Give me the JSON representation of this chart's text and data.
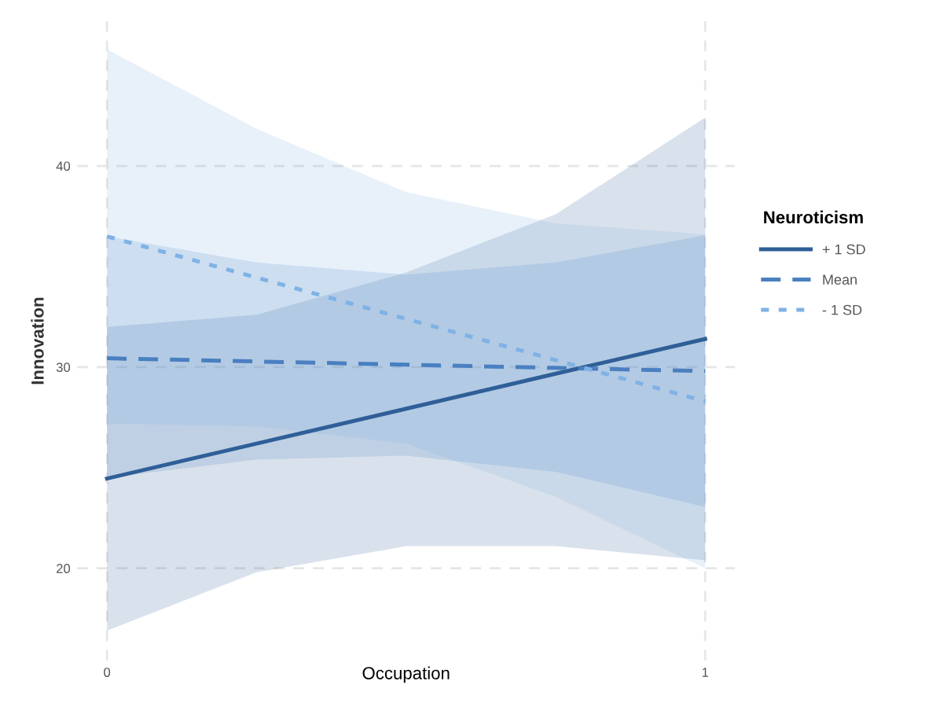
{
  "chart_data": {
    "type": "line",
    "xlabel": "Occupation",
    "ylabel": "Innovation",
    "legend_title": "Neuroticism",
    "x": [
      0,
      0.25,
      0.5,
      0.75,
      1
    ],
    "series": [
      {
        "name": "+ 1 SD",
        "color": "#2f5f98",
        "line_style": "solid",
        "values": [
          24.46,
          26.2,
          27.93,
          29.67,
          31.4
        ],
        "lower": [
          16.9,
          19.8,
          21.1,
          21.1,
          20.4
        ],
        "upper": [
          32.0,
          32.6,
          34.7,
          37.6,
          42.4
        ]
      },
      {
        "name": "Mean",
        "color": "#4a7fc0",
        "line_style": "dashed",
        "values": [
          30.44,
          30.28,
          30.12,
          29.96,
          29.8
        ],
        "lower": [
          24.5,
          25.4,
          25.6,
          24.8,
          23.05
        ],
        "upper": [
          36.5,
          35.2,
          34.6,
          35.2,
          36.55
        ]
      },
      {
        "name": "- 1 SD",
        "color": "#7fb2e5",
        "line_style": "dotted",
        "values": [
          36.5,
          34.45,
          32.4,
          30.35,
          28.3
        ],
        "lower": [
          27.2,
          27.05,
          26.2,
          23.55,
          20.0
        ],
        "upper": [
          45.8,
          41.85,
          38.7,
          37.15,
          36.6
        ]
      }
    ],
    "xlim": [
      -0.05,
      1.05
    ],
    "ylim": [
      15.4,
      47.2
    ],
    "xticks": [
      0,
      1
    ],
    "yticks": [
      20,
      30,
      40
    ],
    "grid": true,
    "legend": "right"
  }
}
